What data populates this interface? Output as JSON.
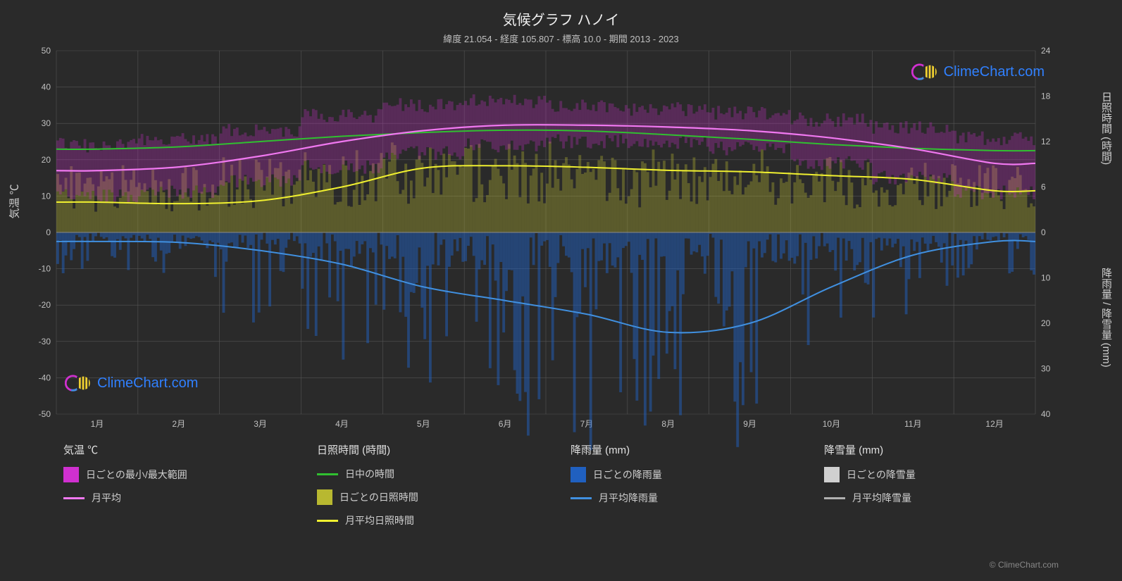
{
  "title": "気候グラフ ハノイ",
  "subtitle": "緯度 21.054 - 経度 105.807 - 標高 10.0 - 期間 2013 - 2023",
  "axis_labels": {
    "left": "気温 ℃",
    "right_top": "日照時間 (時間)",
    "right_bottom": "降雨量 / 降雪量 (mm)"
  },
  "chart": {
    "type": "climate-multi",
    "months": [
      "1月",
      "2月",
      "3月",
      "4月",
      "5月",
      "6月",
      "7月",
      "8月",
      "9月",
      "10月",
      "11月",
      "12月"
    ],
    "left_axis": {
      "min": -50,
      "max": 50,
      "step": 10,
      "label": "気温 ℃"
    },
    "right_axis_top": {
      "min": 0,
      "max": 24,
      "step": 6,
      "label": "日照時間 (時間)"
    },
    "right_axis_bottom": {
      "min": 0,
      "max": 40,
      "step": 10,
      "label": "降雨量 / 降雪量 (mm)"
    },
    "colors": {
      "background": "#2a2a2a",
      "grid": "#555555",
      "temp_range": "#d030d0",
      "temp_avg": "#f078f0",
      "daylight": "#30c030",
      "sunshine_daily": "#b8b830",
      "sunshine_avg": "#f0f030",
      "rain_daily": "#2060c0",
      "rain_avg": "#4090e0",
      "snow_daily": "#d0d0d0",
      "snow_avg": "#b0b0b0",
      "watermark": "#3080ff"
    },
    "temp_avg": [
      17,
      18,
      21,
      25,
      28,
      29.5,
      29.5,
      29,
      28,
      26,
      23,
      19
    ],
    "temp_max": [
      24,
      26,
      28,
      32,
      35,
      36,
      35,
      34,
      33,
      31,
      29,
      26
    ],
    "temp_min": [
      10,
      11,
      14,
      18,
      22,
      24,
      25,
      25,
      23,
      19,
      15,
      11
    ],
    "daylight": [
      11,
      11.3,
      12,
      12.7,
      13.2,
      13.5,
      13.4,
      12.9,
      12.3,
      11.6,
      11.1,
      10.8
    ],
    "sunshine_avg": [
      4,
      3.8,
      4.2,
      6,
      8.5,
      8.8,
      8.6,
      8.2,
      8,
      7.5,
      7,
      5.5
    ],
    "sunshine_daily_max": [
      9,
      9,
      10,
      11,
      12,
      12,
      12,
      11,
      11,
      10,
      10,
      9
    ],
    "rain_avg": [
      2,
      2.2,
      4,
      7,
      12,
      15,
      18,
      22,
      20,
      12,
      5,
      2
    ],
    "rain_daily_max": [
      10,
      12,
      20,
      30,
      40,
      45,
      48,
      50,
      48,
      35,
      20,
      10
    ]
  },
  "legend": {
    "groups": [
      {
        "title": "気温 ℃",
        "items": [
          {
            "type": "swatch",
            "color": "#d030d0",
            "label": "日ごとの最小/最大範囲"
          },
          {
            "type": "line",
            "color": "#f078f0",
            "label": "月平均"
          }
        ]
      },
      {
        "title": "日照時間 (時間)",
        "items": [
          {
            "type": "line",
            "color": "#30c030",
            "label": "日中の時間"
          },
          {
            "type": "swatch",
            "color": "#b8b830",
            "label": "日ごとの日照時間"
          },
          {
            "type": "line",
            "color": "#f0f030",
            "label": "月平均日照時間"
          }
        ]
      },
      {
        "title": "降雨量 (mm)",
        "items": [
          {
            "type": "swatch",
            "color": "#2060c0",
            "label": "日ごとの降雨量"
          },
          {
            "type": "line",
            "color": "#4090e0",
            "label": "月平均降雨量"
          }
        ]
      },
      {
        "title": "降雪量 (mm)",
        "items": [
          {
            "type": "swatch",
            "color": "#d0d0d0",
            "label": "日ごとの降雪量"
          },
          {
            "type": "line",
            "color": "#b0b0b0",
            "label": "月平均降雪量"
          }
        ]
      }
    ]
  },
  "watermark": "ClimeChart.com",
  "watermark_small": "© ClimeChart.com"
}
